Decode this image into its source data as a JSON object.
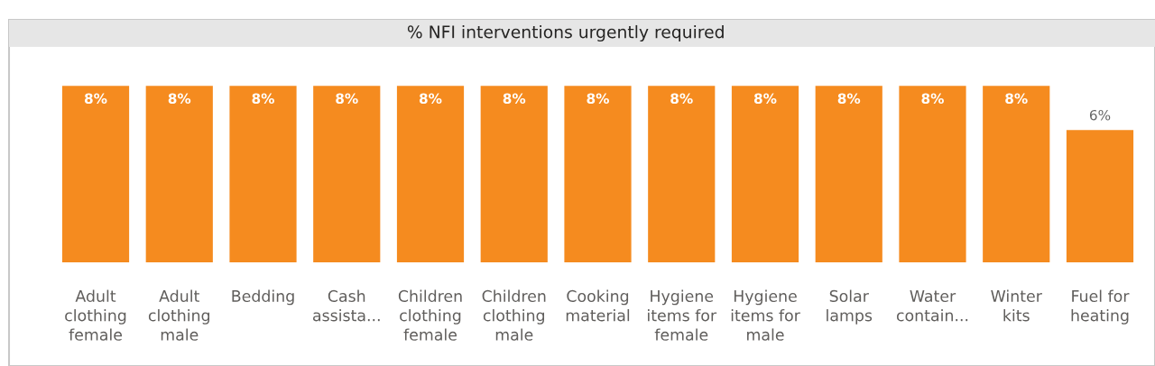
{
  "chart_data": {
    "type": "bar",
    "title": "% NFI interventions urgently required",
    "categories": [
      "Adult clothing female",
      "Adult clothing male",
      "Bedding",
      "Cash assista...",
      "Children clothing female",
      "Children clothing male",
      "Cooking material",
      "Hygiene items for female",
      "Hygiene items for male",
      "Solar lamps",
      "Water contain...",
      "Winter kits",
      "Fuel for heating"
    ],
    "values": [
      8,
      8,
      8,
      8,
      8,
      8,
      8,
      8,
      8,
      8,
      8,
      8,
      6
    ],
    "value_labels": [
      "8%",
      "8%",
      "8%",
      "8%",
      "8%",
      "8%",
      "8%",
      "8%",
      "8%",
      "8%",
      "8%",
      "8%",
      "6%"
    ],
    "color": "#f58b1f",
    "grid": false,
    "legend": false
  }
}
